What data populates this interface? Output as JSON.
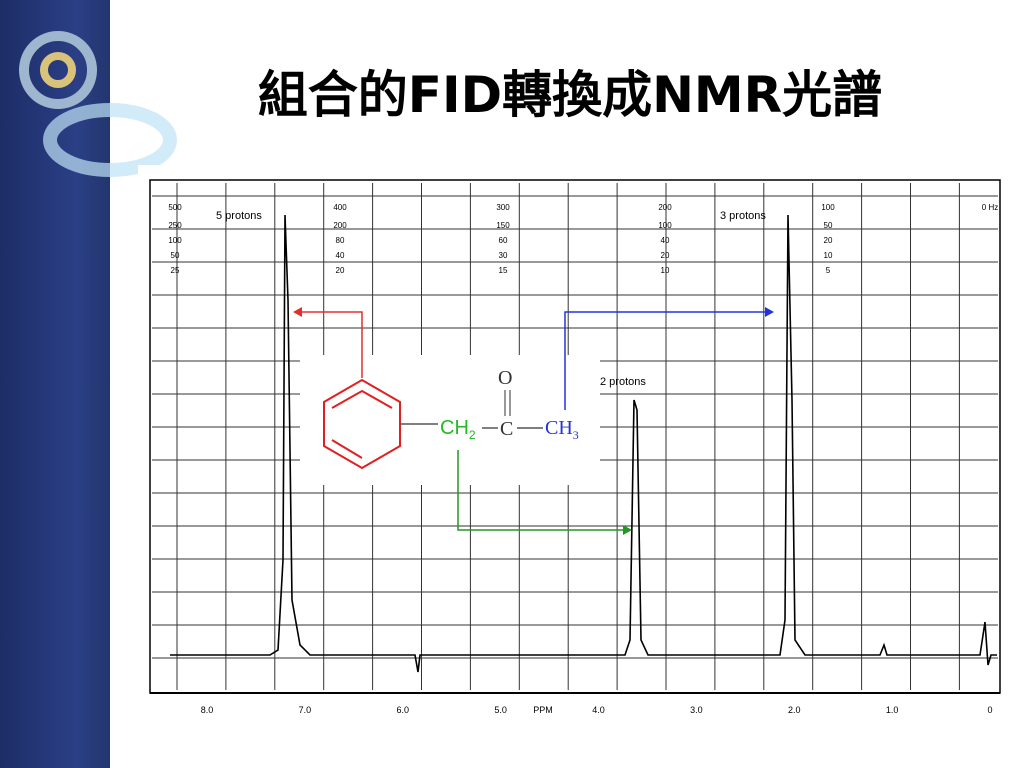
{
  "title": "組合的FID轉換成NMR光譜",
  "spectrum": {
    "hz_scale": [
      "500",
      "400",
      "300",
      "200",
      "100",
      "0 Hz"
    ],
    "sub_scales": [
      [
        "250",
        "200",
        "150",
        "100",
        "50"
      ],
      [
        "100",
        "80",
        "60",
        "40",
        "20"
      ],
      [
        "50",
        "40",
        "30",
        "20",
        "10"
      ],
      [
        "25",
        "20",
        "15",
        "10",
        "5"
      ]
    ],
    "ppm_labels": [
      "8.0",
      "7.0",
      "6.0",
      "5.0",
      "4.0",
      "3.0",
      "2.0",
      "1.0",
      "0"
    ],
    "axis_label": "PPM",
    "peak_labels": [
      "5 protons",
      "2 protons",
      "3 protons"
    ]
  },
  "molecule": {
    "oxygen": "O",
    "carbonyl": "C",
    "ch2": {
      "text": "CH",
      "sub": "2"
    },
    "ch3": {
      "text": "CH",
      "sub": "3"
    }
  }
}
